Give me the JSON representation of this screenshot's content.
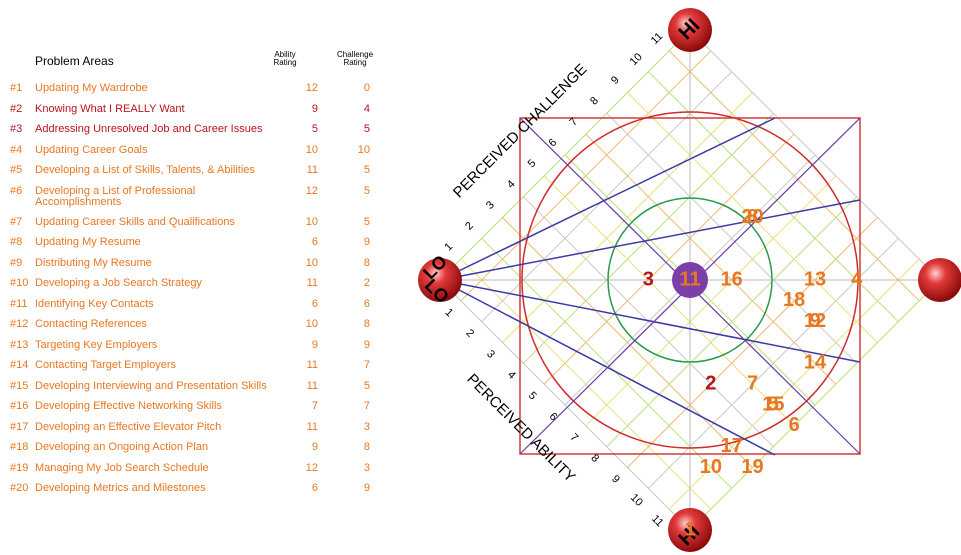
{
  "table": {
    "header": {
      "problem": "Problem Areas",
      "ability": "Ability Rating",
      "challenge": "Challenge Rating"
    },
    "rows": [
      {
        "num": "#1",
        "text": "Updating My Wardrobe",
        "ability": 12,
        "challenge": 0,
        "color": "#e87722"
      },
      {
        "num": "#2",
        "text": "Knowing What I REALLY Want",
        "ability": 9,
        "challenge": 4,
        "color": "#b8141c"
      },
      {
        "num": "#3",
        "text": "Addressing Unresolved Job and Career Issues",
        "ability": 5,
        "challenge": 5,
        "color": "#b8141c"
      },
      {
        "num": "#4",
        "text": "Updating Career Goals",
        "ability": 10,
        "challenge": 10,
        "color": "#e87722"
      },
      {
        "num": "#5",
        "text": "Developing a List of Skills, Talents, & Abilities",
        "ability": 11,
        "challenge": 5,
        "color": "#e87722"
      },
      {
        "num": "#6",
        "text": "Developing a List of Professional Accomplishments",
        "ability": 12,
        "challenge": 5,
        "color": "#e87722"
      },
      {
        "num": "#7",
        "text": "Updating Career Skills and Qualifications",
        "ability": 10,
        "challenge": 5,
        "color": "#e87722"
      },
      {
        "num": "#8",
        "text": "Updating My Resume",
        "ability": 6,
        "challenge": 9,
        "color": "#e87722"
      },
      {
        "num": "#9",
        "text": "Distributing My Resume",
        "ability": 10,
        "challenge": 8,
        "color": "#e87722"
      },
      {
        "num": "#10",
        "text": "Developing a Job Search Strategy",
        "ability": 11,
        "challenge": 2,
        "color": "#e87722"
      },
      {
        "num": "#11",
        "text": "Identifying Key Contacts",
        "ability": 6,
        "challenge": 6,
        "color": "#e87722"
      },
      {
        "num": "#12",
        "text": "Contacting References",
        "ability": 10,
        "challenge": 8,
        "color": "#e87722"
      },
      {
        "num": "#13",
        "text": "Targeting Key Employers",
        "ability": 9,
        "challenge": 9,
        "color": "#e87722"
      },
      {
        "num": "#14",
        "text": "Contacting Target Employers",
        "ability": 11,
        "challenge": 7,
        "color": "#e87722"
      },
      {
        "num": "#15",
        "text": "Developing Interviewing and Presentation Skills",
        "ability": 11,
        "challenge": 5,
        "color": "#e87722"
      },
      {
        "num": "#16",
        "text": "Developing Effective Networking Skills",
        "ability": 7,
        "challenge": 7,
        "color": "#e87722"
      },
      {
        "num": "#17",
        "text": "Developing an Effective Elevator Pitch",
        "ability": 11,
        "challenge": 3,
        "color": "#e87722"
      },
      {
        "num": "#18",
        "text": "Developing an Ongoing Action Plan",
        "ability": 9,
        "challenge": 8,
        "color": "#e87722"
      },
      {
        "num": "#19",
        "text": "Managing My Job Search Schedule",
        "ability": 12,
        "challenge": 3,
        "color": "#e87722"
      },
      {
        "num": "#20",
        "text": "Developing Metrics and Milestones",
        "ability": 6,
        "challenge": 9,
        "color": "#e87722"
      }
    ]
  },
  "diagram": {
    "challenge_title": "PERCEIVED CHALLENGE",
    "ability_title": "PERCEIVED ABILITY",
    "hi_label": "HI",
    "lo_label": "LO",
    "ticks": [
      1,
      2,
      3,
      4,
      5,
      6,
      7,
      8,
      9,
      10,
      11
    ],
    "point_labels": [
      "1",
      "2",
      "3",
      "4",
      "5",
      "6",
      "7",
      "8",
      "9",
      "10",
      "11",
      "12",
      "13",
      "14",
      "15",
      "16",
      "17",
      "18",
      "19",
      "20"
    ]
  }
}
